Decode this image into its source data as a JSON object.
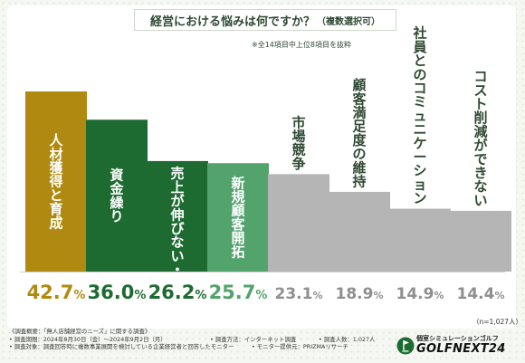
{
  "title": {
    "main": "経営における悩みは何ですか？",
    "sub": "（複数選択可）"
  },
  "note": "※全14項目中上位8項目を抜粋",
  "n_label": "（n=1,027人）",
  "colors": {
    "bar_1": "#b08a10",
    "bar_2": "#1e6b32",
    "bar_3": "#1e6b32",
    "bar_4": "#53a36c",
    "bar_gray": "#b5b5b5",
    "value_1": "#b08a10",
    "value_2": "#1e6b32",
    "value_4": "#53a36c",
    "value_gray": "#8f8f8f",
    "text_on_bar": "#ffffff",
    "text_above_bar": "#2f4a33"
  },
  "chart_data": {
    "type": "bar",
    "categories": [
      "人材獲得と育成",
      "資金繰り",
      "売上が伸びない・不安定",
      "新規顧客開拓",
      "市場競争",
      "顧客満足度の維持",
      "社員とのコミュニケーション",
      "コスト削減ができない"
    ],
    "values": [
      42.7,
      36.0,
      26.2,
      25.7,
      23.1,
      18.9,
      14.9,
      14.4
    ],
    "value_labels": [
      {
        "num": "42.7",
        "unit": "%"
      },
      {
        "num": "36.0",
        "unit": "%"
      },
      {
        "num": "26.2",
        "unit": "%"
      },
      {
        "num": "25.7",
        "unit": "%"
      },
      {
        "num": "23.1",
        "unit": "%"
      },
      {
        "num": "18.9",
        "unit": "%"
      },
      {
        "num": "14.9",
        "unit": "%"
      },
      {
        "num": "14.4",
        "unit": "%"
      }
    ],
    "title": "経営における悩みは何ですか？（複数選択可）",
    "xlabel": "",
    "ylabel": "",
    "ylim": [
      0,
      45
    ],
    "grid": false,
    "legend": "none"
  },
  "footer": {
    "survey_title": "《調査概要：「無人店舗経営のニーズ」に関する調査》",
    "period": "• 調査期間：2024年8月30日（金）〜2024年9月2日（月）",
    "method": "• 調査方法：インターネット調査",
    "respondents": "• 調査人数：1,027人",
    "target": "• 調査対象：調査回答時に複数事業展開を検討している企業経営者と回答したモニター",
    "provider": "• モニター提供元：PRIZMAリサーチ"
  },
  "brand": {
    "sub": "個室シミュレーションゴルフ",
    "main": "GOLFNEXT24",
    "logo_icon": "golf-flag-icon"
  }
}
